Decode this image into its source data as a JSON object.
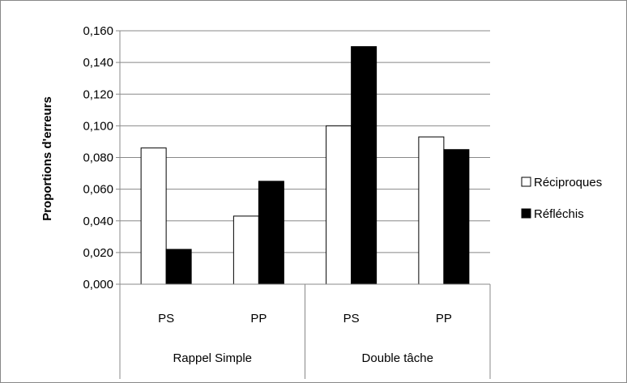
{
  "chart_data": {
    "type": "bar",
    "title": "",
    "xlabel": "",
    "ylabel": "Proportions d'erreurs",
    "ylim": [
      0,
      0.16
    ],
    "yticks": [
      "0,000",
      "0,020",
      "0,040",
      "0,060",
      "0,080",
      "0,100",
      "0,120",
      "0,140",
      "0,160"
    ],
    "yticks_values": [
      0,
      0.02,
      0.04,
      0.06,
      0.08,
      0.1,
      0.12,
      0.14,
      0.16
    ],
    "categories": [
      "PS",
      "PP",
      "PS",
      "PP"
    ],
    "groups": [
      {
        "label": "Rappel Simple",
        "categories": [
          "PS",
          "PP"
        ]
      },
      {
        "label": "Double tâche",
        "categories": [
          "PS",
          "PP"
        ]
      }
    ],
    "series": [
      {
        "name": "Réciproques",
        "values": [
          0.086,
          0.043,
          0.1,
          0.093
        ],
        "color": "#ffffff"
      },
      {
        "name": "Réfléchis",
        "values": [
          0.022,
          0.065,
          0.15,
          0.085
        ],
        "color": "#000000"
      }
    ],
    "grid": true,
    "legend_position": "right"
  }
}
